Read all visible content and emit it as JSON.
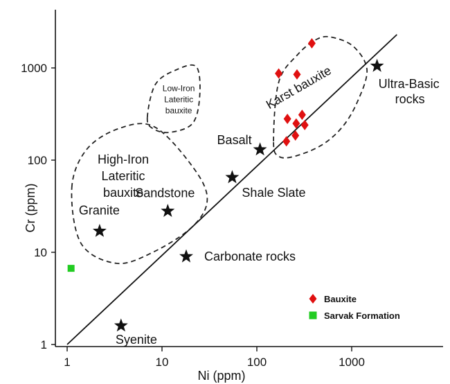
{
  "chart_data": {
    "type": "scatter",
    "xscale": "log",
    "yscale": "log",
    "xlim": [
      0.8,
      8000
    ],
    "ylim": [
      0.85,
      5000
    ],
    "xlabel": "Ni (ppm)",
    "ylabel": "Cr (ppm)",
    "xticks": [
      {
        "value": 1,
        "label": "1"
      },
      {
        "value": 10,
        "label": "10"
      },
      {
        "value": 100,
        "label": "100"
      },
      {
        "value": 1000,
        "label": "1000"
      }
    ],
    "yticks": [
      {
        "value": 1,
        "label": "1"
      },
      {
        "value": 10,
        "label": "10"
      },
      {
        "value": 100,
        "label": "100"
      },
      {
        "value": 1000,
        "label": "1000"
      }
    ],
    "reference_line": {
      "from": [
        1,
        1
      ],
      "to": [
        3000,
        2300
      ]
    },
    "rock_types": [
      {
        "name": "Granite",
        "x": 2.2,
        "y": 17,
        "label_pos": "above-left"
      },
      {
        "name": "Sandstone",
        "x": 11.5,
        "y": 28,
        "label_pos": "above"
      },
      {
        "name": "Carbonate rocks",
        "x": 18,
        "y": 9,
        "label_pos": "right"
      },
      {
        "name": "Syenite",
        "x": 3.7,
        "y": 1.6,
        "label_pos": "below"
      },
      {
        "name": "Shale Slate",
        "x": 55,
        "y": 65,
        "label_pos": "below-right"
      },
      {
        "name": "Basalt",
        "x": 108,
        "y": 130,
        "label_pos": "left"
      },
      {
        "name": "Ultra-Basic rocks",
        "x": 1850,
        "y": 1050,
        "label_pos": "below-right"
      }
    ],
    "series": [
      {
        "name": "Bauxite",
        "marker": "diamond",
        "color": "#e01010",
        "points": [
          [
            380,
            1850
          ],
          [
            170,
            870
          ],
          [
            265,
            850
          ],
          [
            210,
            280
          ],
          [
            300,
            310
          ],
          [
            260,
            250
          ],
          [
            320,
            240
          ],
          [
            255,
            185
          ],
          [
            205,
            160
          ]
        ]
      },
      {
        "name": "Sarvak Formation",
        "marker": "square",
        "color": "#22cc22",
        "points": [
          [
            1.1,
            6.7
          ]
        ]
      }
    ],
    "regions": [
      {
        "name": "Karst bauxite",
        "points": [
          [
            150,
            160
          ],
          [
            170,
            700
          ],
          [
            270,
            1400
          ],
          [
            430,
            2050
          ],
          [
            620,
            2150
          ],
          [
            1050,
            1700
          ],
          [
            1450,
            950
          ],
          [
            1150,
            430
          ],
          [
            800,
            230
          ],
          [
            480,
            145
          ],
          [
            250,
            110
          ],
          [
            170,
            110
          ]
        ]
      },
      {
        "name": "Low-Iron Lateritic bauxite",
        "points": [
          [
            7,
            290
          ],
          [
            8.5,
            660
          ],
          [
            14,
            950
          ],
          [
            23,
            1030
          ],
          [
            25,
            500
          ],
          [
            21,
            250
          ],
          [
            12,
            200
          ],
          [
            8,
            220
          ]
        ]
      },
      {
        "name": "High-Iron Lateritic bauxite",
        "points": [
          [
            1.12,
            50
          ],
          [
            1.6,
            130
          ],
          [
            3.5,
            220
          ],
          [
            8.3,
            230
          ],
          [
            21,
            85
          ],
          [
            30,
            38
          ],
          [
            21,
            19
          ],
          [
            8,
            10
          ],
          [
            3.3,
            7.6
          ],
          [
            1.4,
            12.5
          ]
        ]
      }
    ],
    "legend": {
      "position": "bottom-right",
      "entries": [
        "Bauxite",
        "Sarvak Formation"
      ]
    },
    "region_labels": {
      "karst": "Karst bauxite",
      "low_iron": [
        "Low-Iron",
        "Lateritic",
        "bauxite"
      ],
      "high_iron": [
        "High-Iron",
        "Lateritic",
        "bauxite"
      ]
    },
    "grid": false
  }
}
